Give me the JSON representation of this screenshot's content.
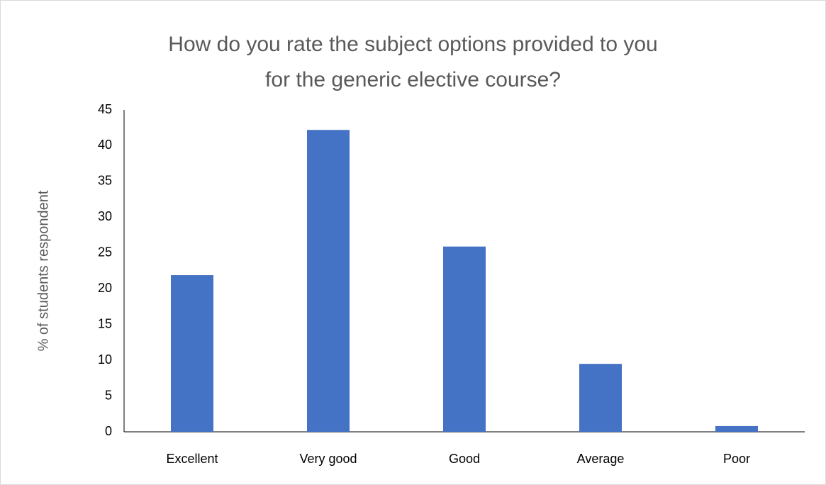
{
  "chart_data": {
    "type": "bar",
    "title": "How do you rate the subject options provided to you for the generic elective course?",
    "y_label": "% of students respondent",
    "categories": [
      "Excellent",
      "Very good",
      "Good",
      "Average",
      "Poor"
    ],
    "values": [
      21.9,
      42.2,
      25.9,
      9.5,
      0.8
    ],
    "color": "#4472c4",
    "ylim": [
      0,
      45
    ],
    "yticks": [
      0,
      5,
      10,
      15,
      20,
      25,
      30,
      35,
      40,
      45
    ],
    "grid": false
  }
}
